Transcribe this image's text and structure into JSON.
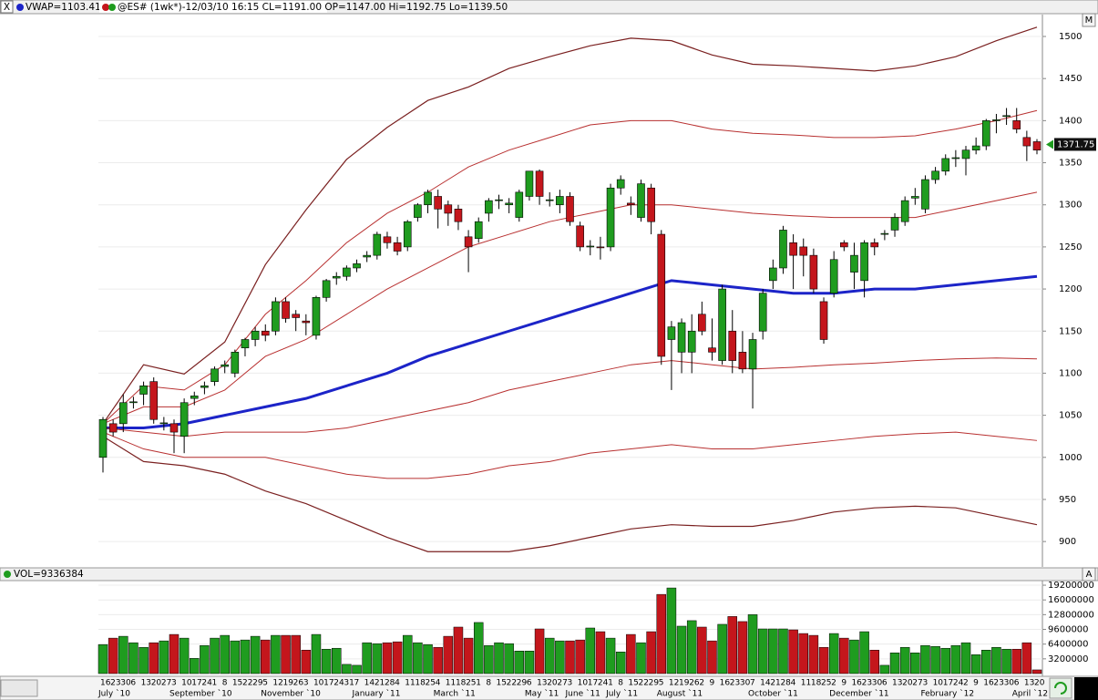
{
  "header": {
    "vwap_label": "VWAP=1103.41",
    "symbol_label": "@ES# (1wk*)-12/03/10 16:15 CL=1191.00 OP=1147.00 Hi=1192.75 Lo=1139.50",
    "close_button": "X"
  },
  "chart_data": [
    {
      "type": "candlestick",
      "button": "M",
      "categories": [
        "16",
        "23",
        "30",
        "6",
        "13",
        "20",
        "27",
        "3",
        "10",
        "17",
        "24",
        "1",
        "8",
        "15",
        "22",
        "29",
        "5",
        "12",
        "19",
        "26",
        "3",
        "10",
        "17",
        "24",
        "31",
        "7",
        "14",
        "21",
        "28",
        "4",
        "11",
        "18",
        "25",
        "4",
        "11",
        "18",
        "25",
        "1",
        "8",
        "15",
        "22",
        "29",
        "6",
        "13",
        "20",
        "27",
        "3",
        "10",
        "17",
        "24",
        "1",
        "8",
        "15",
        "22",
        "29",
        "5",
        "12",
        "19",
        "26",
        "2",
        "9",
        "16",
        "23",
        "30",
        "7",
        "14",
        "21",
        "28",
        "4",
        "11",
        "18",
        "25",
        "2",
        "9",
        "16",
        "23",
        "30",
        "6",
        "13",
        "20",
        "27",
        "3",
        "10",
        "17",
        "24",
        "2",
        "9",
        "16",
        "23",
        "30",
        "6",
        "13",
        "20"
      ],
      "month_labels": [
        {
          "label": "July `10",
          "at": 0
        },
        {
          "label": "September `10",
          "at": 7
        },
        {
          "label": "November `10",
          "at": 16
        },
        {
          "label": "January `11",
          "at": 25
        },
        {
          "label": "March `11",
          "at": 33
        },
        {
          "label": "May `11",
          "at": 42
        },
        {
          "label": "June `11",
          "at": 46
        },
        {
          "label": "July `11",
          "at": 50
        },
        {
          "label": "August `11",
          "at": 55
        },
        {
          "label": "October `11",
          "at": 64
        },
        {
          "label": "December `11",
          "at": 72
        },
        {
          "label": "February `12",
          "at": 81
        },
        {
          "label": "April `12",
          "at": 90
        }
      ],
      "open": [
        1000,
        1040,
        1040,
        1065,
        1075,
        1090,
        1040,
        1040,
        1025,
        1070,
        1083,
        1090,
        1108,
        1100,
        1130,
        1140,
        1150,
        1150,
        1185,
        1170,
        1162,
        1145,
        1190,
        1213,
        1215,
        1225,
        1238,
        1240,
        1262,
        1255,
        1250,
        1285,
        1300,
        1310,
        1300,
        1295,
        1262,
        1260,
        1290,
        1305,
        1300,
        1285,
        1310,
        1340,
        1305,
        1300,
        1310,
        1275,
        1250,
        1250,
        1250,
        1320,
        1302,
        1285,
        1320,
        1265,
        1140,
        1125,
        1125,
        1170,
        1130,
        1115,
        1150,
        1125,
        1105,
        1150,
        1210,
        1225,
        1255,
        1250,
        1240,
        1185,
        1195,
        1255,
        1220,
        1210,
        1255,
        1265,
        1270,
        1280,
        1308,
        1295,
        1330,
        1340,
        1355,
        1355,
        1365,
        1370,
        1400,
        1405,
        1400,
        1380,
        1375
      ],
      "high": [
        1048,
        1045,
        1075,
        1072,
        1090,
        1095,
        1048,
        1045,
        1070,
        1078,
        1090,
        1108,
        1115,
        1128,
        1142,
        1155,
        1158,
        1190,
        1190,
        1175,
        1170,
        1192,
        1212,
        1220,
        1228,
        1235,
        1245,
        1268,
        1268,
        1262,
        1282,
        1302,
        1318,
        1318,
        1305,
        1300,
        1270,
        1285,
        1308,
        1312,
        1308,
        1318,
        1340,
        1342,
        1315,
        1318,
        1315,
        1280,
        1258,
        1262,
        1325,
        1335,
        1310,
        1330,
        1325,
        1270,
        1162,
        1165,
        1170,
        1185,
        1165,
        1205,
        1175,
        1150,
        1148,
        1200,
        1235,
        1275,
        1265,
        1260,
        1248,
        1190,
        1245,
        1258,
        1255,
        1258,
        1260,
        1270,
        1290,
        1310,
        1320,
        1335,
        1345,
        1360,
        1365,
        1370,
        1380,
        1402,
        1408,
        1415,
        1415,
        1388,
        1378
      ],
      "low": [
        982,
        1025,
        1030,
        1058,
        1062,
        1040,
        1032,
        1005,
        1005,
        1062,
        1075,
        1085,
        1100,
        1095,
        1120,
        1132,
        1138,
        1145,
        1160,
        1150,
        1145,
        1140,
        1185,
        1205,
        1210,
        1220,
        1232,
        1235,
        1248,
        1240,
        1245,
        1280,
        1290,
        1272,
        1275,
        1270,
        1220,
        1255,
        1280,
        1295,
        1290,
        1280,
        1305,
        1300,
        1298,
        1290,
        1275,
        1245,
        1240,
        1235,
        1245,
        1312,
        1288,
        1280,
        1265,
        1110,
        1080,
        1100,
        1100,
        1145,
        1115,
        1110,
        1100,
        1100,
        1058,
        1140,
        1200,
        1218,
        1200,
        1215,
        1195,
        1135,
        1190,
        1245,
        1200,
        1190,
        1240,
        1258,
        1262,
        1275,
        1300,
        1290,
        1325,
        1335,
        1345,
        1335,
        1360,
        1365,
        1385,
        1395,
        1385,
        1352,
        1360
      ],
      "close": [
        1045,
        1030,
        1065,
        1066,
        1085,
        1045,
        1041,
        1030,
        1065,
        1073,
        1085,
        1105,
        1110,
        1125,
        1140,
        1150,
        1145,
        1185,
        1165,
        1166,
        1160,
        1190,
        1210,
        1215,
        1225,
        1230,
        1240,
        1265,
        1255,
        1245,
        1280,
        1300,
        1315,
        1295,
        1290,
        1280,
        1250,
        1280,
        1305,
        1306,
        1302,
        1315,
        1340,
        1310,
        1306,
        1310,
        1280,
        1250,
        1251,
        1249,
        1320,
        1330,
        1300,
        1325,
        1280,
        1120,
        1155,
        1160,
        1150,
        1150,
        1125,
        1200,
        1115,
        1105,
        1140,
        1195,
        1225,
        1270,
        1240,
        1240,
        1200,
        1140,
        1235,
        1250,
        1240,
        1255,
        1250,
        1266,
        1285,
        1305,
        1310,
        1330,
        1340,
        1355,
        1356,
        1365,
        1370,
        1400,
        1401,
        1406,
        1390,
        1370,
        1365
      ],
      "up_color": "#1f9c1f",
      "down_color": "#c4161c",
      "lines": [
        {
          "color": "#7a2020",
          "width": 1.2,
          "x": [
            0,
            4,
            8,
            12,
            16,
            20,
            24,
            28,
            32,
            36,
            40,
            44,
            48,
            52,
            56,
            60,
            64,
            68,
            72,
            76,
            80,
            84,
            88,
            92
          ],
          "values": [
            1040,
            1110,
            1099,
            1137,
            1229,
            1294,
            1354,
            1392,
            1424,
            1440,
            1462,
            1476,
            1489,
            1498,
            1495,
            1478,
            1467,
            1465,
            1462,
            1459,
            1465,
            1476,
            1495,
            1511
          ]
        },
        {
          "color": "#b83030",
          "width": 1,
          "x": [
            0,
            4,
            8,
            12,
            16,
            20,
            24,
            28,
            32,
            36,
            40,
            44,
            48,
            52,
            56,
            60,
            64,
            68,
            72,
            76,
            80,
            84,
            88,
            92
          ],
          "values": [
            1040,
            1085,
            1080,
            1110,
            1170,
            1210,
            1255,
            1290,
            1315,
            1345,
            1365,
            1380,
            1395,
            1400,
            1400,
            1390,
            1385,
            1383,
            1380,
            1380,
            1382,
            1390,
            1400,
            1412
          ]
        },
        {
          "color": "#b83030",
          "width": 1,
          "x": [
            0,
            4,
            8,
            12,
            16,
            20,
            24,
            28,
            32,
            36,
            40,
            44,
            48,
            52,
            56,
            60,
            64,
            68,
            72,
            76,
            80,
            84,
            88,
            92
          ],
          "values": [
            1040,
            1060,
            1060,
            1080,
            1120,
            1140,
            1170,
            1200,
            1225,
            1250,
            1265,
            1280,
            1290,
            1300,
            1300,
            1295,
            1290,
            1287,
            1285,
            1285,
            1285,
            1295,
            1305,
            1315
          ]
        },
        {
          "color": "#1c24c8",
          "width": 3,
          "x": [
            0,
            4,
            8,
            12,
            16,
            20,
            24,
            28,
            32,
            36,
            40,
            44,
            48,
            52,
            56,
            60,
            64,
            68,
            72,
            76,
            80,
            84,
            88,
            92
          ],
          "values": [
            1035,
            1035,
            1040,
            1050,
            1060,
            1070,
            1085,
            1100,
            1120,
            1135,
            1150,
            1165,
            1180,
            1195,
            1210,
            1205,
            1200,
            1195,
            1195,
            1200,
            1200,
            1205,
            1210,
            1215
          ]
        },
        {
          "color": "#b83030",
          "width": 1,
          "x": [
            0,
            4,
            8,
            12,
            16,
            20,
            24,
            28,
            32,
            36,
            40,
            44,
            48,
            52,
            56,
            60,
            64,
            68,
            72,
            76,
            80,
            84,
            88,
            92
          ],
          "values": [
            1035,
            1030,
            1025,
            1030,
            1030,
            1030,
            1035,
            1045,
            1055,
            1065,
            1080,
            1090,
            1100,
            1110,
            1115,
            1110,
            1105,
            1107,
            1110,
            1112,
            1115,
            1117,
            1118,
            1117
          ]
        },
        {
          "color": "#b83030",
          "width": 1,
          "x": [
            0,
            4,
            8,
            12,
            16,
            20,
            24,
            28,
            32,
            36,
            40,
            44,
            48,
            52,
            56,
            60,
            64,
            68,
            72,
            76,
            80,
            84,
            88,
            92
          ],
          "values": [
            1030,
            1010,
            1000,
            1000,
            1000,
            990,
            980,
            975,
            975,
            980,
            990,
            995,
            1005,
            1010,
            1015,
            1010,
            1010,
            1015,
            1020,
            1025,
            1028,
            1030,
            1025,
            1020
          ]
        },
        {
          "color": "#7a2020",
          "width": 1.2,
          "x": [
            0,
            4,
            8,
            12,
            16,
            20,
            24,
            28,
            32,
            36,
            40,
            44,
            48,
            52,
            56,
            60,
            64,
            68,
            72,
            76,
            80,
            84,
            88,
            92
          ],
          "values": [
            1025,
            995,
            990,
            980,
            960,
            945,
            925,
            905,
            888,
            888,
            888,
            895,
            905,
            915,
            920,
            918,
            918,
            925,
            935,
            940,
            942,
            940,
            930,
            920
          ]
        }
      ],
      "last_price": 1371.75,
      "ylim": [
        872,
        1526
      ],
      "yticks": [
        900,
        950,
        1000,
        1050,
        1100,
        1150,
        1200,
        1250,
        1300,
        1350,
        1400,
        1450,
        1500
      ],
      "grid": true
    },
    {
      "type": "bar",
      "title": "VOL=9336384",
      "button": "A",
      "values": [
        6300000,
        7700000,
        8100000,
        6700000,
        5700000,
        6700000,
        7100000,
        8500000,
        7700000,
        3300000,
        6100000,
        7700000,
        8300000,
        7100000,
        7300000,
        8100000,
        7300000,
        8300000,
        8300000,
        8300000,
        5100000,
        8500000,
        5300000,
        5500000,
        2000000,
        1800000,
        6700000,
        6500000,
        6700000,
        6900000,
        8300000,
        6700000,
        6300000,
        5700000,
        8100000,
        10100000,
        7700000,
        11100000,
        6100000,
        6700000,
        6500000,
        4900000,
        4900000,
        9700000,
        7700000,
        7100000,
        7100000,
        7300000,
        9900000,
        9100000,
        7700000,
        4700000,
        8500000,
        6700000,
        9100000,
        17200000,
        18600000,
        10300000,
        11500000,
        10100000,
        7100000,
        10700000,
        12400000,
        11300000,
        12800000,
        9700000,
        9700000,
        9700000,
        9500000,
        8700000,
        8300000,
        5700000,
        8700000,
        7700000,
        7300000,
        9100000,
        5100000,
        1800000,
        4500000,
        5700000,
        4500000,
        6100000,
        5900000,
        5500000,
        6100000,
        6700000,
        4100000,
        5100000,
        5700000,
        5300000,
        5300000,
        6700000,
        800000
      ],
      "ylim": [
        0,
        20000000
      ],
      "yticks": [
        3200000,
        6400000,
        9600000,
        12800000,
        16000000,
        19200000
      ],
      "grid": true
    }
  ]
}
